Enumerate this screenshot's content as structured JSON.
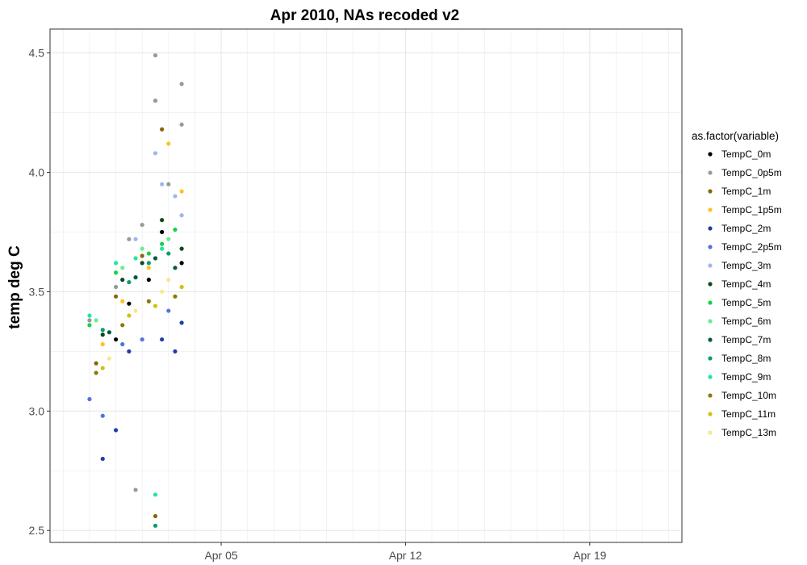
{
  "chart_data": {
    "type": "scatter",
    "title": "Apr 2010, NAs recoded v2",
    "xlabel": "",
    "ylabel": "temp deg C",
    "x_axis": {
      "type": "date",
      "range": [
        "2010-03-29T12:00",
        "2010-04-22T12:00"
      ],
      "ticks": [
        {
          "value": "2010-04-05",
          "label": "Apr 05"
        },
        {
          "value": "2010-04-12",
          "label": "Apr 12"
        },
        {
          "value": "2010-04-19",
          "label": "Apr 19"
        }
      ]
    },
    "y_axis": {
      "range": [
        2.45,
        4.6
      ],
      "ticks": [
        2.5,
        3.0,
        3.5,
        4.0,
        4.5
      ],
      "tick_labels": [
        "2.5",
        "3.0",
        "3.5",
        "4.0",
        "4.5"
      ]
    },
    "grid": true,
    "legend": {
      "title": "as.factor(variable)",
      "placement": "right",
      "entries": [
        {
          "label": "TempC_0m",
          "color": "#000000"
        },
        {
          "label": "TempC_0p5m",
          "color": "#999999"
        },
        {
          "label": "TempC_1m",
          "color": "#8B6508"
        },
        {
          "label": "TempC_1p5m",
          "color": "#FFC125"
        },
        {
          "label": "TempC_2m",
          "color": "#1C3FA8"
        },
        {
          "label": "TempC_2p5m",
          "color": "#4F74E0"
        },
        {
          "label": "TempC_3m",
          "color": "#A2B5EE"
        },
        {
          "label": "TempC_4m",
          "color": "#0B4A1E"
        },
        {
          "label": "TempC_5m",
          "color": "#16D24A"
        },
        {
          "label": "TempC_6m",
          "color": "#66F08C"
        },
        {
          "label": "TempC_7m",
          "color": "#035C3B"
        },
        {
          "label": "TempC_8m",
          "color": "#0A9E6A"
        },
        {
          "label": "TempC_9m",
          "color": "#1EE8A2"
        },
        {
          "label": "TempC_10m",
          "color": "#8E7A00"
        },
        {
          "label": "TempC_11m",
          "color": "#D4C010"
        },
        {
          "label": "TempC_13m",
          "color": "#F5E98B"
        }
      ]
    },
    "series": [
      {
        "name": "TempC_0m",
        "x": [
          "2010-04-01T00:00",
          "2010-04-01T12:00",
          "2010-04-02T06:00",
          "2010-04-02T18:00",
          "2010-04-03T12:00"
        ],
        "y": [
          3.3,
          3.45,
          3.55,
          3.75,
          3.62
        ]
      },
      {
        "name": "TempC_0p5m",
        "x": [
          "2010-03-31T00:00",
          "2010-04-01T00:00",
          "2010-04-01T12:00",
          "2010-04-02T00:00",
          "2010-04-02T12:00",
          "2010-04-02T12:00",
          "2010-04-03T00:00",
          "2010-04-03T12:00",
          "2010-04-03T12:00",
          "2010-04-01T18:00"
        ],
        "y": [
          3.38,
          3.52,
          3.72,
          3.78,
          4.49,
          4.3,
          3.95,
          4.37,
          4.2,
          2.67
        ]
      },
      {
        "name": "TempC_1m",
        "x": [
          "2010-03-31T06:00",
          "2010-04-01T00:00",
          "2010-04-02T00:00",
          "2010-04-02T18:00",
          "2010-04-02T12:00"
        ],
        "y": [
          3.2,
          3.48,
          3.65,
          4.18,
          2.56
        ]
      },
      {
        "name": "TempC_1p5m",
        "x": [
          "2010-03-31T12:00",
          "2010-04-01T06:00",
          "2010-04-02T06:00",
          "2010-04-03T00:00",
          "2010-04-03T12:00"
        ],
        "y": [
          3.28,
          3.46,
          3.6,
          4.12,
          3.92
        ]
      },
      {
        "name": "TempC_2m",
        "x": [
          "2010-03-31T12:00",
          "2010-04-01T00:00",
          "2010-04-01T12:00",
          "2010-04-02T18:00",
          "2010-04-03T06:00",
          "2010-04-03T12:00"
        ],
        "y": [
          2.8,
          2.92,
          3.25,
          3.3,
          3.25,
          3.37
        ]
      },
      {
        "name": "TempC_2p5m",
        "x": [
          "2010-03-31T00:00",
          "2010-03-31T12:00",
          "2010-04-01T06:00",
          "2010-04-02T00:00",
          "2010-04-03T00:00"
        ],
        "y": [
          3.05,
          2.98,
          3.28,
          3.3,
          3.42
        ]
      },
      {
        "name": "TempC_3m",
        "x": [
          "2010-04-01T18:00",
          "2010-04-02T12:00",
          "2010-04-02T18:00",
          "2010-04-03T06:00",
          "2010-04-03T12:00"
        ],
        "y": [
          3.72,
          4.08,
          3.95,
          3.9,
          3.82
        ]
      },
      {
        "name": "TempC_4m",
        "x": [
          "2010-03-31T12:00",
          "2010-04-01T06:00",
          "2010-04-02T00:00",
          "2010-04-02T18:00",
          "2010-04-03T12:00"
        ],
        "y": [
          3.32,
          3.55,
          3.62,
          3.8,
          3.68
        ]
      },
      {
        "name": "TempC_5m",
        "x": [
          "2010-03-31T00:00",
          "2010-04-01T00:00",
          "2010-04-02T06:00",
          "2010-04-02T18:00",
          "2010-04-03T06:00"
        ],
        "y": [
          3.36,
          3.58,
          3.66,
          3.7,
          3.76
        ]
      },
      {
        "name": "TempC_6m",
        "x": [
          "2010-03-31T06:00",
          "2010-04-01T06:00",
          "2010-04-02T00:00",
          "2010-04-03T00:00"
        ],
        "y": [
          3.38,
          3.6,
          3.68,
          3.72
        ]
      },
      {
        "name": "TempC_7m",
        "x": [
          "2010-03-31T18:00",
          "2010-04-01T18:00",
          "2010-04-02T12:00",
          "2010-04-03T06:00"
        ],
        "y": [
          3.33,
          3.56,
          3.64,
          3.6
        ]
      },
      {
        "name": "TempC_8m",
        "x": [
          "2010-03-31T12:00",
          "2010-04-01T12:00",
          "2010-04-02T06:00",
          "2010-04-03T00:00",
          "2010-04-02T12:00"
        ],
        "y": [
          3.34,
          3.54,
          3.62,
          3.66,
          2.52
        ]
      },
      {
        "name": "TempC_9m",
        "x": [
          "2010-03-31T00:00",
          "2010-04-01T00:00",
          "2010-04-01T18:00",
          "2010-04-02T18:00",
          "2010-04-02T12:00"
        ],
        "y": [
          3.4,
          3.62,
          3.64,
          3.68,
          2.65
        ]
      },
      {
        "name": "TempC_10m",
        "x": [
          "2010-03-31T06:00",
          "2010-04-01T06:00",
          "2010-04-02T06:00",
          "2010-04-03T06:00"
        ],
        "y": [
          3.16,
          3.36,
          3.46,
          3.48
        ]
      },
      {
        "name": "TempC_11m",
        "x": [
          "2010-03-31T12:00",
          "2010-04-01T12:00",
          "2010-04-02T12:00",
          "2010-04-03T12:00"
        ],
        "y": [
          3.18,
          3.4,
          3.44,
          3.52
        ]
      },
      {
        "name": "TempC_13m",
        "x": [
          "2010-03-31T18:00",
          "2010-04-01T18:00",
          "2010-04-02T18:00",
          "2010-04-03T00:00"
        ],
        "y": [
          3.22,
          3.42,
          3.5,
          3.55
        ]
      }
    ]
  }
}
